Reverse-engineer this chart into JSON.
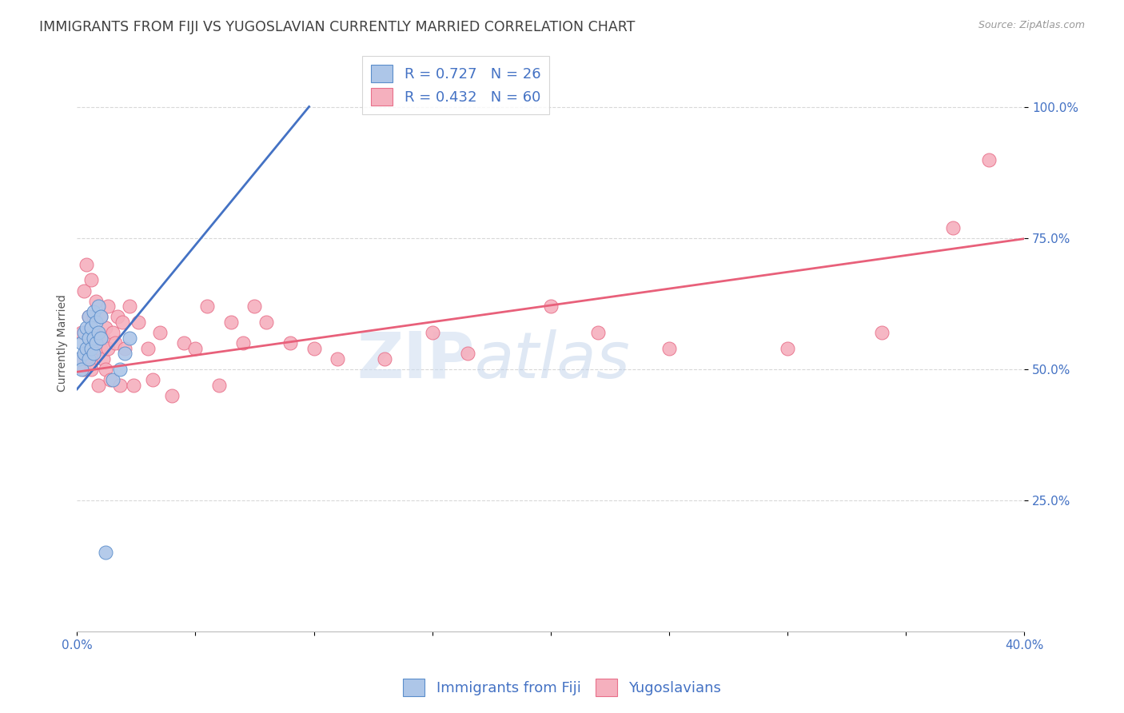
{
  "title": "IMMIGRANTS FROM FIJI VS YUGOSLAVIAN CURRENTLY MARRIED CORRELATION CHART",
  "source": "Source: ZipAtlas.com",
  "ylabel_label": "Currently Married",
  "x_min": 0.0,
  "x_max": 0.4,
  "y_min": 0.0,
  "y_max": 1.1,
  "x_ticks": [
    0.0,
    0.05,
    0.1,
    0.15,
    0.2,
    0.25,
    0.3,
    0.35,
    0.4
  ],
  "x_tick_labels": [
    "0.0%",
    "",
    "",
    "",
    "",
    "",
    "",
    "",
    "40.0%"
  ],
  "y_ticks": [
    0.25,
    0.5,
    0.75,
    1.0
  ],
  "y_tick_labels": [
    "25.0%",
    "50.0%",
    "75.0%",
    "100.0%"
  ],
  "fiji_color": "#adc6e8",
  "yugoslavian_color": "#f5b0be",
  "fiji_edge_color": "#5b8ecb",
  "yugoslavian_edge_color": "#e8708a",
  "fiji_line_color": "#4472c4",
  "yugoslavian_line_color": "#e8607a",
  "fiji_R": 0.727,
  "fiji_N": 26,
  "yugoslavian_R": 0.432,
  "yugoslavian_N": 60,
  "watermark_zip": "ZIP",
  "watermark_atlas": "atlas",
  "fiji_scatter_x": [
    0.001,
    0.002,
    0.002,
    0.003,
    0.003,
    0.004,
    0.004,
    0.005,
    0.005,
    0.005,
    0.006,
    0.006,
    0.007,
    0.007,
    0.007,
    0.008,
    0.008,
    0.009,
    0.009,
    0.01,
    0.01,
    0.012,
    0.015,
    0.018,
    0.02,
    0.022
  ],
  "fiji_scatter_y": [
    0.52,
    0.55,
    0.5,
    0.53,
    0.57,
    0.54,
    0.58,
    0.52,
    0.56,
    0.6,
    0.54,
    0.58,
    0.53,
    0.56,
    0.61,
    0.55,
    0.59,
    0.57,
    0.62,
    0.56,
    0.6,
    0.15,
    0.48,
    0.5,
    0.53,
    0.56
  ],
  "yugoslavian_scatter_x": [
    0.001,
    0.002,
    0.003,
    0.003,
    0.004,
    0.004,
    0.005,
    0.005,
    0.006,
    0.006,
    0.006,
    0.007,
    0.007,
    0.008,
    0.008,
    0.009,
    0.009,
    0.01,
    0.01,
    0.011,
    0.011,
    0.012,
    0.012,
    0.013,
    0.013,
    0.014,
    0.015,
    0.016,
    0.017,
    0.018,
    0.019,
    0.02,
    0.022,
    0.024,
    0.026,
    0.03,
    0.032,
    0.035,
    0.04,
    0.045,
    0.05,
    0.055,
    0.06,
    0.065,
    0.07,
    0.075,
    0.08,
    0.09,
    0.1,
    0.11,
    0.13,
    0.15,
    0.165,
    0.2,
    0.22,
    0.25,
    0.3,
    0.34,
    0.37,
    0.385
  ],
  "yugoslavian_scatter_y": [
    0.52,
    0.57,
    0.5,
    0.65,
    0.52,
    0.7,
    0.54,
    0.6,
    0.52,
    0.67,
    0.5,
    0.55,
    0.6,
    0.55,
    0.63,
    0.47,
    0.57,
    0.54,
    0.6,
    0.52,
    0.56,
    0.5,
    0.58,
    0.54,
    0.62,
    0.48,
    0.57,
    0.55,
    0.6,
    0.47,
    0.59,
    0.54,
    0.62,
    0.47,
    0.59,
    0.54,
    0.48,
    0.57,
    0.45,
    0.55,
    0.54,
    0.62,
    0.47,
    0.59,
    0.55,
    0.62,
    0.59,
    0.55,
    0.54,
    0.52,
    0.52,
    0.57,
    0.53,
    0.62,
    0.57,
    0.54,
    0.54,
    0.57,
    0.77,
    0.9
  ],
  "background_color": "#ffffff",
  "grid_color": "#d8d8d8",
  "tick_color": "#4472c4",
  "title_color": "#404040",
  "title_fontsize": 12.5,
  "axis_label_fontsize": 10,
  "tick_fontsize": 11,
  "legend_fontsize": 13
}
